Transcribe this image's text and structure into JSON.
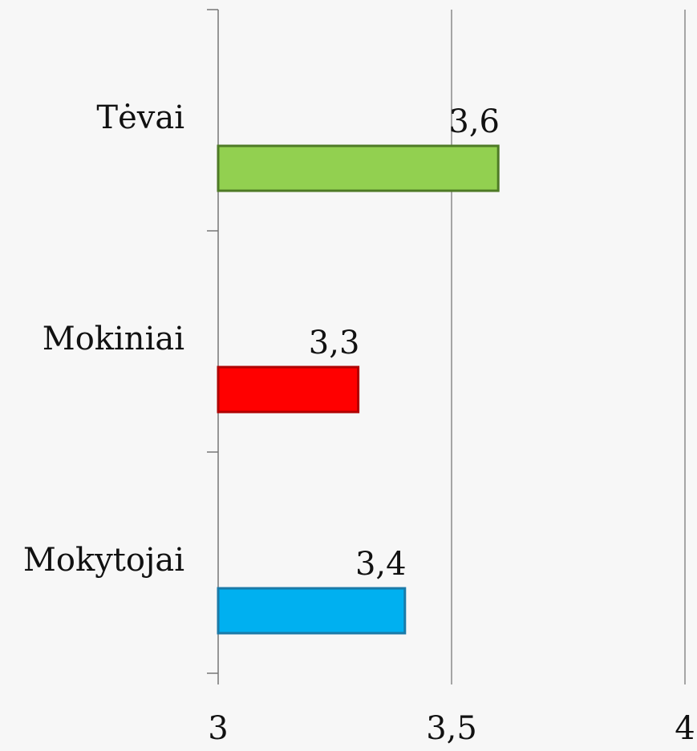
{
  "chart_data": {
    "type": "hbar",
    "categories": [
      "Tėvai",
      "Mokiniai",
      "Mokytojai"
    ],
    "values": [
      3.6,
      3.3,
      3.4
    ],
    "value_labels": [
      "3,6",
      "3,3",
      "3,4"
    ],
    "colors": [
      "#92d050",
      "#ff0000",
      "#00b0f0"
    ],
    "border_colors": [
      "#4e7a26",
      "#b00000",
      "#1a7aa8"
    ],
    "xlim": [
      3,
      4
    ],
    "xticks": [
      3,
      {
        "value": 3.5,
        "label": "3,5"
      },
      4
    ],
    "grid": true
  }
}
